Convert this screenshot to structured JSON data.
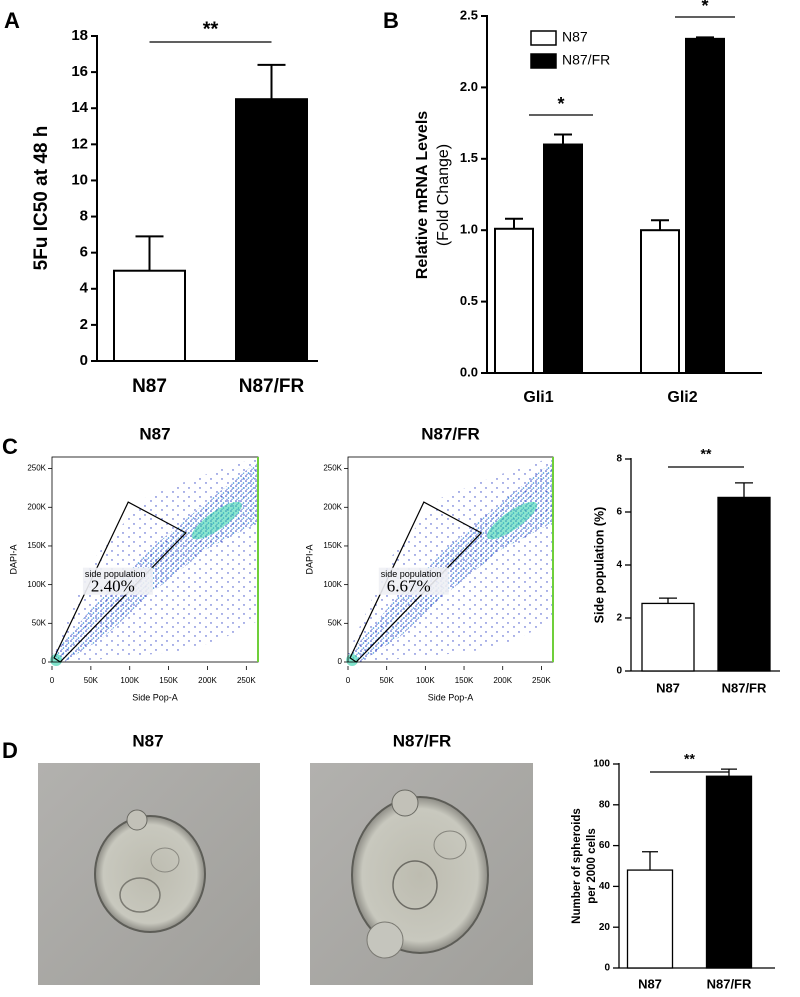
{
  "chart_data": [
    {
      "type": "bar",
      "panel": "A",
      "ylabel": [
        "5Fu IC50 at 48 h"
      ],
      "categories": [
        "N87",
        "N87/FR"
      ],
      "values": [
        5.0,
        14.5
      ],
      "errors": [
        1.9,
        1.9
      ],
      "colors": [
        "#ffffff",
        "#000000"
      ],
      "ylim": [
        0,
        18
      ],
      "yticks": [
        0,
        2,
        4,
        6,
        8,
        10,
        12,
        14,
        16,
        18
      ],
      "significance": "**"
    },
    {
      "type": "bar",
      "panel": "B",
      "ylabel": [
        "Relative mRNA Levels",
        "(Fold Change)"
      ],
      "categories": [
        "Gli1",
        "Gli2"
      ],
      "series": [
        {
          "name": "N87",
          "color": "#ffffff",
          "values": [
            1.01,
            1.0
          ],
          "errors": [
            0.07,
            0.07
          ]
        },
        {
          "name": "N87/FR",
          "color": "#000000",
          "values": [
            1.6,
            2.34
          ],
          "errors": [
            0.07,
            0.01
          ]
        }
      ],
      "ylim": [
        0,
        2.5
      ],
      "yticks": [
        {
          "value": 0,
          "label": "0.0"
        },
        0.5,
        {
          "value": 1,
          "label": "1.0"
        },
        1.5,
        {
          "value": 2,
          "label": "2.0"
        },
        2.5
      ],
      "significance": [
        "*",
        "*"
      ]
    },
    {
      "type": "scatter",
      "panel": "C",
      "title": "N87",
      "xlabel": "Side Pop-A",
      "ylabel": "DAPI-A",
      "xlim": [
        0,
        265000
      ],
      "ylim": [
        0,
        265000
      ],
      "xticks": [
        0,
        {
          "value": 50000,
          "label": "50K"
        },
        {
          "value": 100000,
          "label": "100K"
        },
        {
          "value": 150000,
          "label": "150K"
        },
        {
          "value": 200000,
          "label": "200K"
        },
        {
          "value": 250000,
          "label": "250K"
        }
      ],
      "yticks": [
        0,
        {
          "value": 50000,
          "label": "50K"
        },
        {
          "value": 100000,
          "label": "100K"
        },
        {
          "value": 150000,
          "label": "150K"
        },
        {
          "value": 200000,
          "label": "200K"
        },
        {
          "value": 250000,
          "label": "250K"
        }
      ],
      "gate_name": "side population",
      "gate_value": "2.40%"
    },
    {
      "type": "scatter",
      "title": "N87/FR",
      "xlabel": "Side Pop-A",
      "ylabel": "DAPI-A",
      "xlim": [
        0,
        265000
      ],
      "ylim": [
        0,
        265000
      ],
      "xticks": [
        0,
        {
          "value": 50000,
          "label": "50K"
        },
        {
          "value": 100000,
          "label": "100K"
        },
        {
          "value": 150000,
          "label": "150K"
        },
        {
          "value": 200000,
          "label": "200K"
        },
        {
          "value": 250000,
          "label": "250K"
        }
      ],
      "yticks": [
        0,
        {
          "value": 50000,
          "label": "50K"
        },
        {
          "value": 100000,
          "label": "100K"
        },
        {
          "value": 150000,
          "label": "150K"
        },
        {
          "value": 200000,
          "label": "200K"
        },
        {
          "value": 250000,
          "label": "250K"
        }
      ],
      "gate_name": "side population",
      "gate_value": "6.67%"
    },
    {
      "type": "bar",
      "ylabel": [
        "Side population (%)"
      ],
      "categories": [
        "N87",
        "N87/FR"
      ],
      "values": [
        2.55,
        6.55
      ],
      "errors": [
        0.2,
        0.55
      ],
      "colors": [
        "#ffffff",
        "#000000"
      ],
      "ylim": [
        0,
        8
      ],
      "yticks": [
        0,
        2,
        4,
        6,
        8
      ],
      "significance": "**"
    },
    {
      "type": "bar",
      "ylabel": [
        "Number of spheroids",
        "per 2000 cells"
      ],
      "categories": [
        "N87",
        "N87/FR"
      ],
      "values": [
        48,
        94
      ],
      "errors": [
        9,
        3.5
      ],
      "colors": [
        "#ffffff",
        "#000000"
      ],
      "ylim": [
        0,
        100
      ],
      "yticks": [
        0,
        20,
        40,
        60,
        80,
        100
      ],
      "significance": "**"
    }
  ],
  "images": [
    {
      "panel": "D",
      "title": "N87"
    },
    {
      "title": "N87/FR"
    }
  ]
}
